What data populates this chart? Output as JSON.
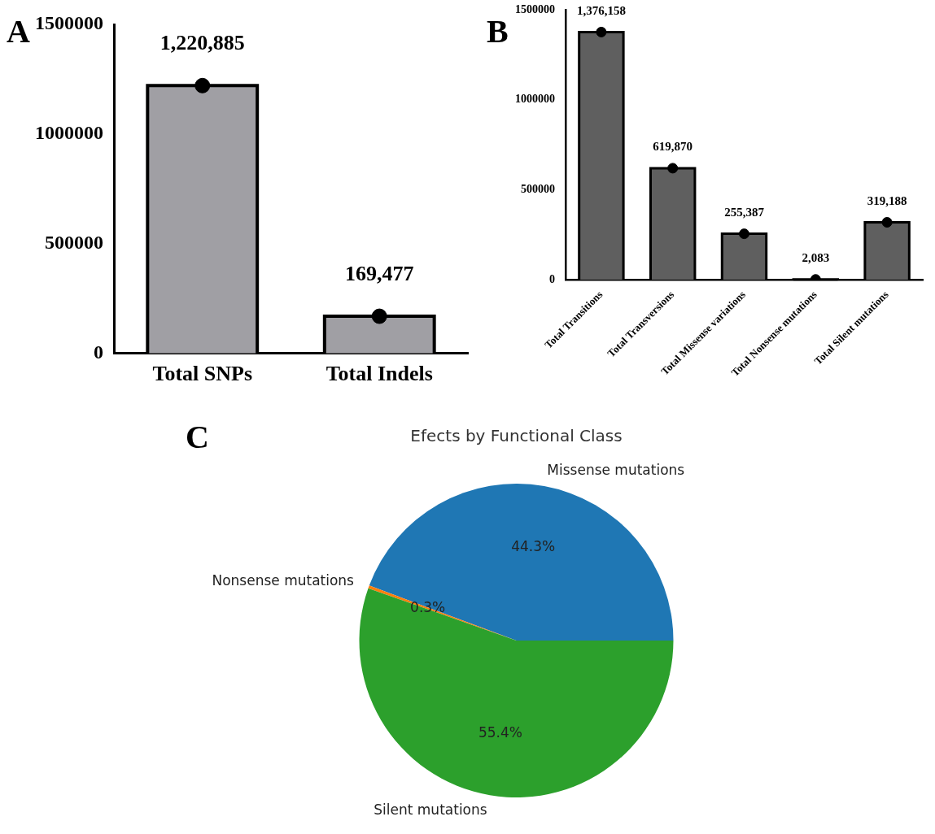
{
  "chart_data": [
    {
      "type": "bar",
      "annotations": [
        "A"
      ],
      "categories": [
        "Total SNPs",
        "Total Indels"
      ],
      "ylim": [
        0,
        1500000
      ],
      "yticks": [
        0,
        500000,
        1000000,
        1500000
      ],
      "grid": false,
      "legend": false,
      "series": [
        {
          "type": "bar",
          "color": "#a09fa4",
          "values": [
            1220885,
            169477
          ],
          "value_labels": [
            "1,220,885",
            "169,477"
          ]
        },
        {
          "type": "scatter",
          "marker": "circle",
          "color": "#000000",
          "x": [
            "Total SNPs",
            "Total Indels"
          ],
          "values": [
            1220885,
            169477
          ]
        }
      ]
    },
    {
      "type": "bar",
      "annotations": [
        "B"
      ],
      "categories": [
        "Total Transitions",
        "Total Transversions",
        "Total Missense variations",
        "Total Nonsense mutations",
        "Total Silent mutations"
      ],
      "ylim": [
        0,
        1500000
      ],
      "yticks": [
        0,
        500000,
        1000000,
        1500000
      ],
      "grid": false,
      "legend": false,
      "series": [
        {
          "type": "bar",
          "color": "#5f5f5f",
          "values": [
            1376158,
            619870,
            255387,
            2083,
            319188
          ],
          "value_labels": [
            "1,376,158",
            "619,870",
            "255,387",
            "2,083",
            "319,188"
          ]
        },
        {
          "type": "scatter",
          "marker": "circle",
          "color": "#000000",
          "x": [
            "Total Transitions",
            "Total Transversions",
            "Total Missense variations",
            "Total Nonsense mutations",
            "Total Silent mutations"
          ],
          "values": [
            1376158,
            619870,
            255387,
            2083,
            319188
          ]
        }
      ]
    },
    {
      "type": "pie",
      "title": "Efects by Functional Class",
      "annotations": [
        "C"
      ],
      "legend": false,
      "categories": [
        "Missense mutations",
        "Nonsense mutations",
        "Silent mutations"
      ],
      "values": [
        44.3,
        0.3,
        55.4
      ],
      "colors": [
        "#1f77b4",
        "#ff7f0e",
        "#2ca02c"
      ],
      "value_labels": [
        "44.3%",
        "0.3%",
        "55.4%"
      ]
    }
  ]
}
